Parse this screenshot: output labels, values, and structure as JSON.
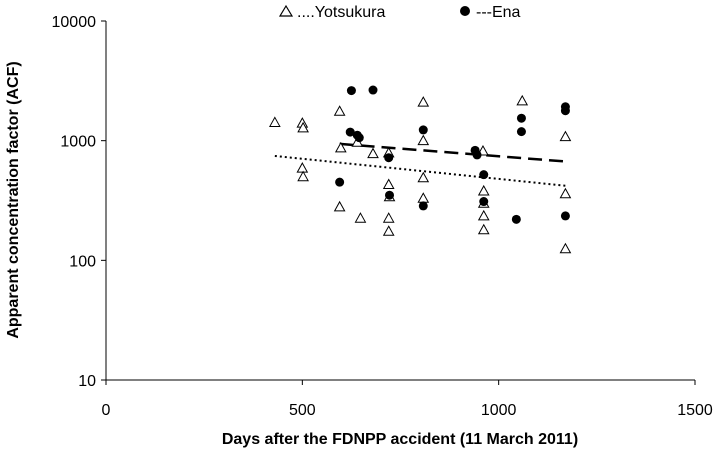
{
  "chart_data": {
    "type": "scatter",
    "xlabel": "Days after the FDNPP accident (11 March 2011)",
    "ylabel": "Apparent concentration factor (ACF)",
    "xlim": [
      0,
      1500
    ],
    "ylim": [
      10,
      10000
    ],
    "y_scale": "log",
    "x_ticks": [
      "0",
      "500",
      "1000",
      "1500"
    ],
    "y_ticks": [
      "10",
      "100",
      "1000",
      "10000"
    ],
    "grid": false,
    "legend_position": "top-center",
    "series": [
      {
        "name": "....Yotsukura",
        "marker": "open-triangle",
        "color": "#000000",
        "points": [
          [
            430,
            1420
          ],
          [
            500,
            1400
          ],
          [
            502,
            1280
          ],
          [
            500,
            590
          ],
          [
            502,
            500
          ],
          [
            595,
            1760
          ],
          [
            598,
            870
          ],
          [
            595,
            280
          ],
          [
            640,
            970
          ],
          [
            648,
            225
          ],
          [
            680,
            780
          ],
          [
            720,
            790
          ],
          [
            720,
            430
          ],
          [
            722,
            340
          ],
          [
            720,
            225
          ],
          [
            720,
            175
          ],
          [
            808,
            2100
          ],
          [
            808,
            1000
          ],
          [
            808,
            490
          ],
          [
            808,
            330
          ],
          [
            960,
            820
          ],
          [
            962,
            380
          ],
          [
            962,
            300
          ],
          [
            962,
            235
          ],
          [
            962,
            180
          ],
          [
            1060,
            2150
          ],
          [
            1170,
            1080
          ],
          [
            1170,
            360
          ],
          [
            1170,
            125
          ]
        ],
        "trendline": {
          "style": "dotted",
          "x": [
            430,
            1170
          ],
          "y": [
            745,
            420
          ]
        }
      },
      {
        "name": "---Ena",
        "marker": "filled-circle",
        "color": "#000000",
        "points": [
          [
            595,
            450
          ],
          [
            625,
            2620
          ],
          [
            622,
            1180
          ],
          [
            640,
            1110
          ],
          [
            645,
            1060
          ],
          [
            680,
            2650
          ],
          [
            720,
            720
          ],
          [
            722,
            350
          ],
          [
            808,
            1230
          ],
          [
            808,
            285
          ],
          [
            940,
            830
          ],
          [
            945,
            760
          ],
          [
            962,
            520
          ],
          [
            962,
            310
          ],
          [
            1045,
            220
          ],
          [
            1058,
            1540
          ],
          [
            1058,
            1190
          ],
          [
            1170,
            1920
          ],
          [
            1170,
            1780
          ],
          [
            1170,
            235
          ]
        ],
        "trendline": {
          "style": "dashed",
          "x": [
            595,
            1170
          ],
          "y": [
            940,
            670
          ]
        }
      }
    ]
  }
}
